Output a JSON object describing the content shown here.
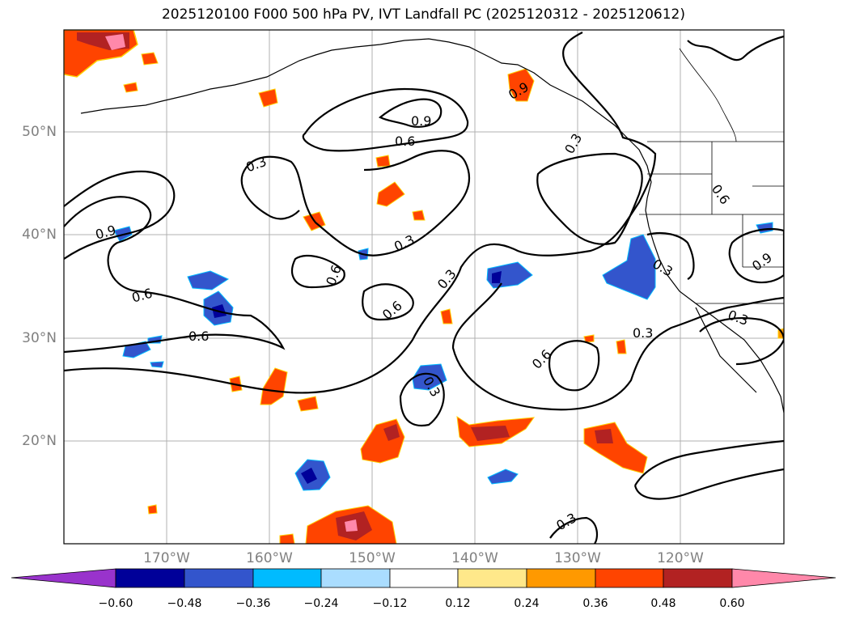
{
  "title": "2025120100 F000 500 hPa PV, IVT Landfall PC (2025120312 - 2025120612)",
  "lat_labels": [
    "50°N",
    "40°N",
    "30°N",
    "20°N"
  ],
  "lon_labels": [
    "170°W",
    "160°W",
    "150°W",
    "140°W",
    "130°W",
    "120°W"
  ],
  "contour_labels": [
    "0.9",
    "0.6",
    "0.3",
    "0.3",
    "0.9",
    "0.3",
    "0.6",
    "0.9",
    "0.6",
    "0.3",
    "0.6",
    "0.6",
    "0.3",
    "0.3",
    "0.3",
    "0.9",
    "0.6",
    "0.3",
    "0.3"
  ],
  "colorbar": {
    "ticks": [
      "−0.60",
      "−0.48",
      "−0.36",
      "−0.24",
      "−0.12",
      "0.12",
      "0.24",
      "0.36",
      "0.48",
      "0.60"
    ],
    "colors": [
      "#9933cc",
      "#000099",
      "#3355cc",
      "#00bbff",
      "#aaddff",
      "#ffffff",
      "#ffe88a",
      "#ff9900",
      "#ff4400",
      "#b22222",
      "#ff88aa"
    ]
  }
}
